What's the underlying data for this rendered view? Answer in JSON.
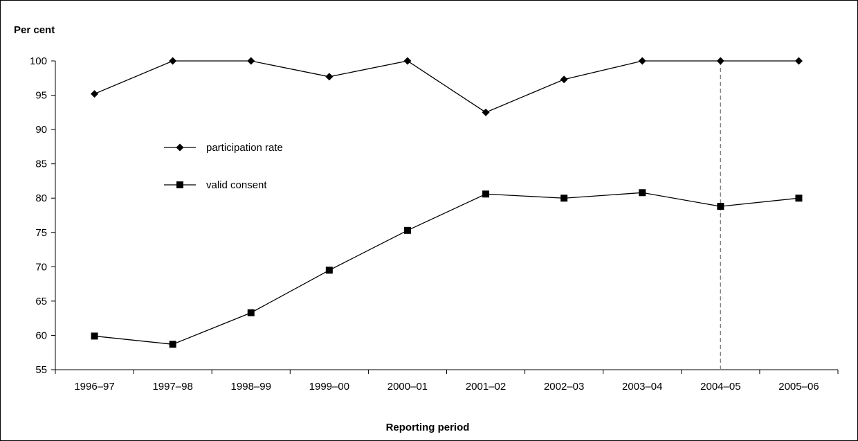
{
  "chart_data": {
    "type": "line",
    "ylabel": "Per cent",
    "xlabel": "Reporting period",
    "categories": [
      "1996–97",
      "1997–98",
      "1998–99",
      "1999–00",
      "2000–01",
      "2001–02",
      "2002–03",
      "2003–04",
      "2004–05",
      "2005–06"
    ],
    "ylim": [
      55,
      100
    ],
    "yticks": [
      "55",
      "60",
      "65",
      "70",
      "75",
      "80",
      "85",
      "90",
      "95",
      "100"
    ],
    "grid": false,
    "legend_position": "center-left",
    "reference_line": {
      "category": "2004–05",
      "style": "dashed",
      "color": "#808080"
    },
    "series": [
      {
        "name": "participation rate",
        "marker": "diamond",
        "color": "#000000",
        "values": [
          95.2,
          100,
          100,
          97.7,
          100,
          92.5,
          97.3,
          100,
          100,
          100
        ]
      },
      {
        "name": "valid consent",
        "marker": "square",
        "color": "#000000",
        "values": [
          59.9,
          58.7,
          63.3,
          69.5,
          75.3,
          80.6,
          80.0,
          80.8,
          78.8,
          80.0
        ]
      }
    ]
  }
}
